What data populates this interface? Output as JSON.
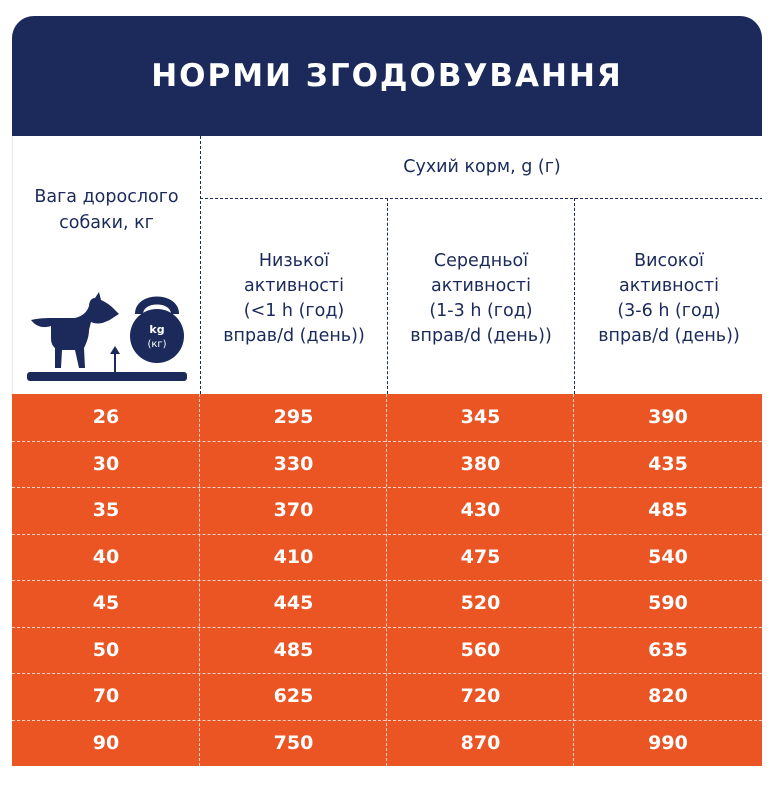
{
  "title": "НОРМИ ЗГОДОВУВАННЯ",
  "header": {
    "weight_label_line1": "Вага дорослого",
    "weight_label_line2": "собаки, кг",
    "dry_food_label": "Сухий корм, g (г)",
    "kettlebell_unit_top": "kg",
    "kettlebell_unit_bottom": "(кг)",
    "columns": [
      {
        "line1": "Низької",
        "line2": "активності",
        "line3": "(<1 h (год)",
        "line4": "вправ/d (день))"
      },
      {
        "line1": "Середньої",
        "line2": "активності",
        "line3": "(1-3 h (год)",
        "line4": "вправ/d (день))"
      },
      {
        "line1": "Високої",
        "line2": "активності",
        "line3": "(3-6 h (год)",
        "line4": "вправ/d (день))"
      }
    ]
  },
  "rows": [
    {
      "weight": "26",
      "low": "295",
      "medium": "345",
      "high": "390"
    },
    {
      "weight": "30",
      "low": "330",
      "medium": "380",
      "high": "435"
    },
    {
      "weight": "35",
      "low": "370",
      "medium": "430",
      "high": "485"
    },
    {
      "weight": "40",
      "low": "410",
      "medium": "475",
      "high": "540"
    },
    {
      "weight": "45",
      "low": "445",
      "medium": "520",
      "high": "590"
    },
    {
      "weight": "50",
      "low": "485",
      "medium": "560",
      "high": "635"
    },
    {
      "weight": "70",
      "low": "625",
      "medium": "720",
      "high": "820"
    },
    {
      "weight": "90",
      "low": "750",
      "medium": "870",
      "high": "990"
    }
  ],
  "colors": {
    "navy": "#1b2a5b",
    "orange": "#eb5423",
    "white": "#ffffff"
  },
  "icons": [
    "dog-icon",
    "kettlebell-icon",
    "scale-platform-icon",
    "up-arrow-icon"
  ]
}
